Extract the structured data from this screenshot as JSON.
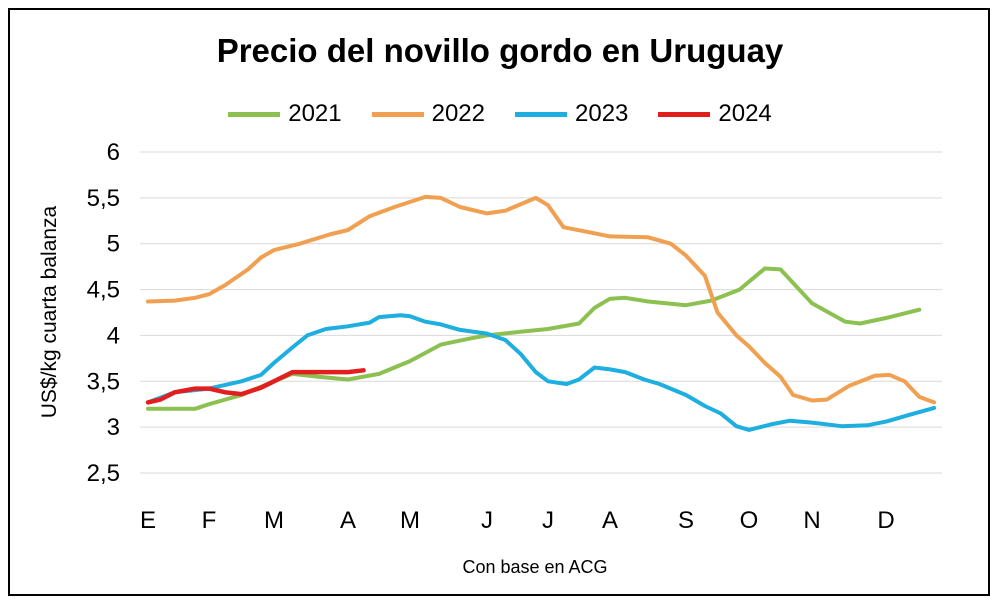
{
  "chart_data": {
    "type": "line",
    "title": "Precio del novillo gordo en Uruguay",
    "ylabel": "US$/kg cuarta balanza",
    "xlabel": "Con base en ACG",
    "ylim": [
      2.5,
      6
    ],
    "yticks": [
      "2,5",
      "3",
      "3,5",
      "4",
      "4,5",
      "5",
      "5,5",
      "6"
    ],
    "categories": [
      "E",
      "F",
      "M",
      "A",
      "M",
      "J",
      "J",
      "A",
      "S",
      "O",
      "N",
      "D"
    ],
    "grid": true,
    "legend": "top",
    "series": [
      {
        "name": "2021",
        "color": "#8CC152",
        "points": [
          [
            0,
            3.2
          ],
          [
            0.77,
            3.2
          ],
          [
            1,
            3.25
          ],
          [
            1.5,
            3.35
          ],
          [
            2,
            3.5
          ],
          [
            2.25,
            3.58
          ],
          [
            2.6,
            3.55
          ],
          [
            3,
            3.52
          ],
          [
            3.5,
            3.58
          ],
          [
            4,
            3.72
          ],
          [
            4.4,
            3.9
          ],
          [
            4.8,
            3.97
          ],
          [
            5,
            4.0
          ],
          [
            5.55,
            4.04
          ],
          [
            6,
            4.07
          ],
          [
            6.5,
            4.13
          ],
          [
            6.75,
            4.3
          ],
          [
            7,
            4.4
          ],
          [
            7.2,
            4.41
          ],
          [
            7.5,
            4.37
          ],
          [
            8,
            4.33
          ],
          [
            8.4,
            4.38
          ],
          [
            8.85,
            4.5
          ],
          [
            9.25,
            4.73
          ],
          [
            9.5,
            4.72
          ],
          [
            10,
            4.35
          ],
          [
            10.45,
            4.15
          ],
          [
            10.65,
            4.13
          ],
          [
            11,
            4.19
          ],
          [
            11.45,
            4.28
          ]
        ]
      },
      {
        "name": "2022",
        "color": "#F0A050",
        "points": [
          [
            0,
            4.37
          ],
          [
            0.44,
            4.38
          ],
          [
            0.77,
            4.41
          ],
          [
            1,
            4.45
          ],
          [
            1.25,
            4.55
          ],
          [
            1.6,
            4.72
          ],
          [
            1.8,
            4.85
          ],
          [
            2,
            4.93
          ],
          [
            2.35,
            5.0
          ],
          [
            2.75,
            5.1
          ],
          [
            3,
            5.15
          ],
          [
            3.35,
            5.3
          ],
          [
            3.75,
            5.4
          ],
          [
            4.2,
            5.51
          ],
          [
            4.4,
            5.5
          ],
          [
            4.65,
            5.4
          ],
          [
            5,
            5.33
          ],
          [
            5.3,
            5.36
          ],
          [
            5.8,
            5.5
          ],
          [
            6,
            5.42
          ],
          [
            6.25,
            5.18
          ],
          [
            6.7,
            5.12
          ],
          [
            7,
            5.08
          ],
          [
            7.5,
            5.07
          ],
          [
            7.8,
            5.0
          ],
          [
            8,
            4.87
          ],
          [
            8.3,
            4.65
          ],
          [
            8.5,
            4.25
          ],
          [
            8.8,
            4.0
          ],
          [
            9,
            3.88
          ],
          [
            9.25,
            3.7
          ],
          [
            9.5,
            3.55
          ],
          [
            9.7,
            3.35
          ],
          [
            10,
            3.29
          ],
          [
            10.2,
            3.3
          ],
          [
            10.5,
            3.45
          ],
          [
            10.85,
            3.56
          ],
          [
            11.05,
            3.57
          ],
          [
            11.25,
            3.5
          ],
          [
            11.45,
            3.33
          ],
          [
            11.65,
            3.27
          ]
        ]
      },
      {
        "name": "2023",
        "color": "#1EAEE0",
        "points": [
          [
            0,
            3.27
          ],
          [
            0.44,
            3.38
          ],
          [
            1,
            3.42
          ],
          [
            1.5,
            3.5
          ],
          [
            1.8,
            3.57
          ],
          [
            2,
            3.7
          ],
          [
            2.25,
            3.87
          ],
          [
            2.45,
            4.0
          ],
          [
            2.7,
            4.07
          ],
          [
            3,
            4.1
          ],
          [
            3.35,
            4.14
          ],
          [
            3.5,
            4.2
          ],
          [
            3.85,
            4.22
          ],
          [
            4,
            4.21
          ],
          [
            4.2,
            4.15
          ],
          [
            4.4,
            4.12
          ],
          [
            4.65,
            4.06
          ],
          [
            5,
            4.02
          ],
          [
            5.3,
            3.95
          ],
          [
            5.55,
            3.8
          ],
          [
            5.8,
            3.6
          ],
          [
            6,
            3.5
          ],
          [
            6.3,
            3.47
          ],
          [
            6.5,
            3.52
          ],
          [
            6.75,
            3.65
          ],
          [
            7,
            3.63
          ],
          [
            7.2,
            3.6
          ],
          [
            7.45,
            3.52
          ],
          [
            7.65,
            3.47
          ],
          [
            8,
            3.35
          ],
          [
            8.3,
            3.23
          ],
          [
            8.55,
            3.15
          ],
          [
            8.8,
            3.01
          ],
          [
            9,
            2.97
          ],
          [
            9.35,
            3.03
          ],
          [
            9.65,
            3.07
          ],
          [
            10,
            3.05
          ],
          [
            10.4,
            3.01
          ],
          [
            10.75,
            3.02
          ],
          [
            11,
            3.06
          ],
          [
            11.3,
            3.13
          ],
          [
            11.65,
            3.21
          ]
        ]
      },
      {
        "name": "2024",
        "color": "#E31E1E",
        "points": [
          [
            0,
            3.27
          ],
          [
            0.2,
            3.3
          ],
          [
            0.44,
            3.38
          ],
          [
            0.77,
            3.42
          ],
          [
            1,
            3.42
          ],
          [
            1.25,
            3.38
          ],
          [
            1.5,
            3.36
          ],
          [
            1.8,
            3.43
          ],
          [
            2,
            3.5
          ],
          [
            2.25,
            3.6
          ],
          [
            2.6,
            3.6
          ],
          [
            3,
            3.6
          ],
          [
            3.25,
            3.62
          ]
        ]
      }
    ]
  }
}
